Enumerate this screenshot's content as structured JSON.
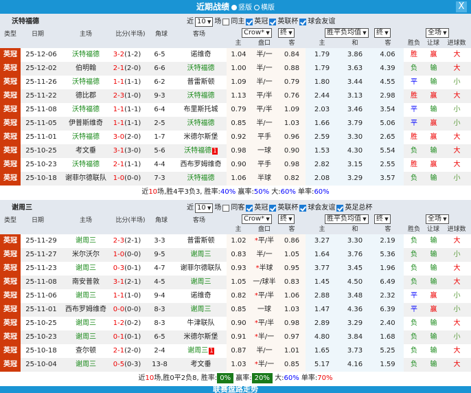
{
  "header": {
    "title": "近期战绩",
    "option_vertical": "竖版",
    "option_horizontal": "横版",
    "close": "X"
  },
  "columns": {
    "type": "类型",
    "date": "日期",
    "home": "主场",
    "score": "比分(半场)",
    "corners": "角球",
    "away": "客场",
    "sub_odds_home": "主",
    "sub_handicap": "盘口",
    "sub_odds_away": "客",
    "sub_win": "主",
    "sub_draw": "和",
    "sub_lose": "客",
    "result": "胜负",
    "handicap_result": "让球",
    "goals": "进球数"
  },
  "selects": {
    "company": "Crow*",
    "final1": "终",
    "avg": "胜平负均值",
    "final2": "终",
    "period": "全场"
  },
  "colors": {
    "header": "#1a94d4",
    "type_badge": "#d03b0b",
    "win": "#ee0000",
    "lose": "#1a8a1a",
    "draw": "#0000ff"
  },
  "sections": [
    {
      "team": "沃特福德",
      "filters": {
        "near": "近",
        "count": "10",
        "unit": "场",
        "options": [
          {
            "label": "同主",
            "checked": false
          },
          {
            "label": "英冠",
            "checked": true
          },
          {
            "label": "英联杯",
            "checked": true
          },
          {
            "label": "球会友谊",
            "checked": true
          }
        ]
      },
      "rows": [
        {
          "type": "英冠",
          "date": "25-12-06",
          "home": "沃特福德",
          "score": "3-2",
          "half": "(1-2)",
          "corners": "6-5",
          "away": "诺维奇",
          "oh": "1.04",
          "hc": "半/一",
          "oa": "0.84",
          "w": "1.79",
          "d": "3.86",
          "l": "4.06",
          "res": "胜",
          "hres": "赢",
          "goals": "大",
          "hl": "home"
        },
        {
          "type": "英冠",
          "date": "25-12-02",
          "home": "伯明翰",
          "score": "2-1",
          "half": "(2-0)",
          "corners": "6-6",
          "away": "沃特福德",
          "oh": "1.00",
          "hc": "半/一",
          "oa": "0.88",
          "w": "1.79",
          "d": "3.63",
          "l": "4.39",
          "res": "负",
          "hres": "输",
          "goals": "大",
          "hl": "away"
        },
        {
          "type": "英冠",
          "date": "25-11-26",
          "home": "沃特福德",
          "score": "1-1",
          "half": "(1-1)",
          "corners": "6-2",
          "away": "普雷斯顿",
          "oh": "1.09",
          "hc": "半/一",
          "oa": "0.79",
          "w": "1.80",
          "d": "3.44",
          "l": "4.55",
          "res": "平",
          "hres": "输",
          "goals": "小",
          "hl": "home"
        },
        {
          "type": "英冠",
          "date": "25-11-22",
          "home": "德比郡",
          "score": "2-3",
          "half": "(1-0)",
          "corners": "9-3",
          "away": "沃特福德",
          "oh": "1.13",
          "hc": "平/半",
          "oa": "0.76",
          "w": "2.44",
          "d": "3.13",
          "l": "2.98",
          "res": "胜",
          "hres": "赢",
          "goals": "大",
          "hl": "away"
        },
        {
          "type": "英冠",
          "date": "25-11-08",
          "home": "沃特福德",
          "score": "1-1",
          "half": "(1-1)",
          "corners": "6-4",
          "away": "布里斯托城",
          "oh": "0.79",
          "hc": "平/半",
          "oa": "1.09",
          "w": "2.03",
          "d": "3.46",
          "l": "3.54",
          "res": "平",
          "hres": "输",
          "goals": "小",
          "hl": "home"
        },
        {
          "type": "英冠",
          "date": "25-11-05",
          "home": "伊普斯维奇",
          "score": "1-1",
          "half": "(1-1)",
          "corners": "2-5",
          "away": "沃特福德",
          "oh": "0.85",
          "hc": "半/一",
          "oa": "1.03",
          "w": "1.66",
          "d": "3.79",
          "l": "5.06",
          "res": "平",
          "hres": "赢",
          "goals": "小",
          "hl": "away"
        },
        {
          "type": "英冠",
          "date": "25-11-01",
          "home": "沃特福德",
          "score": "3-0",
          "half": "(2-0)",
          "corners": "1-7",
          "away": "米德尔斯堡",
          "oh": "0.92",
          "hc": "平手",
          "oa": "0.96",
          "w": "2.59",
          "d": "3.30",
          "l": "2.65",
          "res": "胜",
          "hres": "赢",
          "goals": "大",
          "hl": "home"
        },
        {
          "type": "英冠",
          "date": "25-10-25",
          "home": "考文垂",
          "score": "3-1",
          "half": "(3-0)",
          "corners": "5-6",
          "away": "沃特福德",
          "away_badge": "1",
          "oh": "0.98",
          "hc": "一球",
          "oa": "0.90",
          "w": "1.53",
          "d": "4.30",
          "l": "5.54",
          "res": "负",
          "hres": "输",
          "goals": "大",
          "hl": "away"
        },
        {
          "type": "英冠",
          "date": "25-10-23",
          "home": "沃特福德",
          "score": "2-1",
          "half": "(1-1)",
          "corners": "4-4",
          "away": "西布罗姆维奇",
          "oh": "0.90",
          "hc": "平手",
          "oa": "0.98",
          "w": "2.82",
          "d": "3.15",
          "l": "2.55",
          "res": "胜",
          "hres": "赢",
          "goals": "大",
          "hl": "home"
        },
        {
          "type": "英冠",
          "date": "25-10-18",
          "home": "谢菲尔德联队",
          "score": "1-0",
          "half": "(0-0)",
          "corners": "7-3",
          "away": "沃特福德",
          "oh": "1.06",
          "hc": "半球",
          "oa": "0.82",
          "w": "2.08",
          "d": "3.29",
          "l": "3.57",
          "res": "负",
          "hres": "输",
          "goals": "小",
          "hl": "away"
        }
      ],
      "summary": {
        "prefix": "近",
        "count": "10",
        "record": "场,胜4平3负3, 胜率:",
        "win_rate": "40%",
        "handicap_label": " 赢率:",
        "handicap_rate": "50%",
        "over_label": " 大:",
        "over_rate": "60%",
        "odd_label": " 单率:",
        "odd_rate": "60%"
      }
    },
    {
      "team": "谢周三",
      "filters": {
        "near": "近",
        "count": "10",
        "unit": "场",
        "options": [
          {
            "label": "同客",
            "checked": false
          },
          {
            "label": "英冠",
            "checked": true
          },
          {
            "label": "英联杯",
            "checked": true
          },
          {
            "label": "球会友谊",
            "checked": true
          },
          {
            "label": "英足总杯",
            "checked": true
          }
        ]
      },
      "rows": [
        {
          "type": "英冠",
          "date": "25-11-29",
          "home": "谢周三",
          "score": "2-3",
          "half": "(2-1)",
          "corners": "3-3",
          "away": "普雷斯顿",
          "oh": "1.02",
          "star": true,
          "hc": "平/半",
          "oa": "0.86",
          "w": "3.27",
          "d": "3.30",
          "l": "2.19",
          "res": "负",
          "hres": "输",
          "goals": "大",
          "hl": "home"
        },
        {
          "type": "英冠",
          "date": "25-11-27",
          "home": "米尔沃尔",
          "score": "1-0",
          "half": "(0-0)",
          "corners": "9-5",
          "away": "谢周三",
          "oh": "0.83",
          "hc": "半/一",
          "oa": "1.05",
          "w": "1.64",
          "d": "3.76",
          "l": "5.36",
          "res": "负",
          "hres": "输",
          "goals": "小",
          "hl": "away"
        },
        {
          "type": "英冠",
          "date": "25-11-23",
          "home": "谢周三",
          "score": "0-3",
          "half": "(0-1)",
          "corners": "4-7",
          "away": "谢菲尔德联队",
          "oh": "0.93",
          "star": true,
          "hc": "半球",
          "oa": "0.95",
          "w": "3.77",
          "d": "3.45",
          "l": "1.96",
          "res": "负",
          "hres": "输",
          "goals": "大",
          "hl": "home"
        },
        {
          "type": "英冠",
          "date": "25-11-08",
          "home": "南安普敦",
          "score": "3-1",
          "half": "(2-1)",
          "corners": "4-5",
          "away": "谢周三",
          "oh": "1.05",
          "hc": "一/球半",
          "oa": "0.83",
          "w": "1.45",
          "d": "4.50",
          "l": "6.49",
          "res": "负",
          "hres": "输",
          "goals": "大",
          "hl": "away"
        },
        {
          "type": "英冠",
          "date": "25-11-06",
          "home": "谢周三",
          "score": "1-1",
          "half": "(1-0)",
          "corners": "9-4",
          "away": "诺维奇",
          "oh": "0.82",
          "star": true,
          "hc": "平/半",
          "oa": "1.06",
          "w": "2.88",
          "d": "3.48",
          "l": "2.32",
          "res": "平",
          "hres": "赢",
          "goals": "小",
          "hl": "home"
        },
        {
          "type": "英冠",
          "date": "25-11-01",
          "home": "西布罗姆维奇",
          "score": "0-0",
          "half": "(0-0)",
          "corners": "8-3",
          "away": "谢周三",
          "oh": "0.85",
          "hc": "一球",
          "oa": "1.03",
          "w": "1.47",
          "d": "4.36",
          "l": "6.39",
          "res": "平",
          "hres": "赢",
          "goals": "小",
          "hl": "away"
        },
        {
          "type": "英冠",
          "date": "25-10-25",
          "home": "谢周三",
          "score": "1-2",
          "half": "(0-2)",
          "corners": "8-3",
          "away": "牛津联队",
          "oh": "0.90",
          "star": true,
          "hc": "平/半",
          "oa": "0.98",
          "w": "2.89",
          "d": "3.29",
          "l": "2.40",
          "res": "负",
          "hres": "输",
          "goals": "大",
          "hl": "home"
        },
        {
          "type": "英冠",
          "date": "25-10-23",
          "home": "谢周三",
          "score": "0-1",
          "half": "(0-1)",
          "corners": "6-5",
          "away": "米德尔斯堡",
          "oh": "0.91",
          "star": true,
          "hc": "半/一",
          "oa": "0.97",
          "w": "4.80",
          "d": "3.84",
          "l": "1.68",
          "res": "负",
          "hres": "输",
          "goals": "小",
          "hl": "home"
        },
        {
          "type": "英冠",
          "date": "25-10-18",
          "home": "查尔顿",
          "score": "2-1",
          "half": "(2-0)",
          "corners": "2-4",
          "away": "谢周三",
          "away_badge": "1",
          "oh": "0.87",
          "hc": "半/一",
          "oa": "1.01",
          "w": "1.65",
          "d": "3.73",
          "l": "5.25",
          "res": "负",
          "hres": "输",
          "goals": "大",
          "hl": "away"
        },
        {
          "type": "英冠",
          "date": "25-10-04",
          "home": "谢周三",
          "score": "0-5",
          "half": "(0-3)",
          "corners": "13-8",
          "away": "考文垂",
          "oh": "1.03",
          "star": true,
          "hc": "半/一",
          "oa": "0.85",
          "w": "5.17",
          "d": "4.16",
          "l": "1.59",
          "res": "负",
          "hres": "输",
          "goals": "大",
          "hl": "home"
        }
      ],
      "summary": {
        "prefix": "近",
        "count": "10",
        "record": "场,胜0平2负8, 胜率:",
        "win_rate": "0%",
        "handicap_label": " 赢率:",
        "handicap_rate": "20%",
        "over_label": " 大:",
        "over_rate": "60%",
        "odd_label": " 单率:",
        "odd_rate": "70%",
        "boxed": true
      }
    }
  ],
  "bottom_bar": {
    "title": "联赛盘路走势"
  }
}
